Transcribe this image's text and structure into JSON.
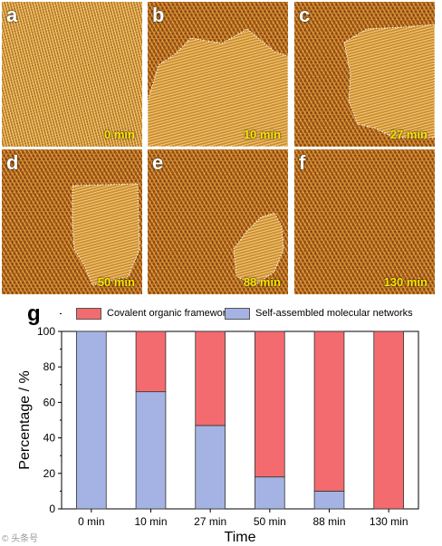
{
  "panels": [
    {
      "letter": "a",
      "time": "0 min"
    },
    {
      "letter": "b",
      "time": "10 min"
    },
    {
      "letter": "c",
      "time": "27 min"
    },
    {
      "letter": "d",
      "time": "50 min"
    },
    {
      "letter": "e",
      "time": "88 min"
    },
    {
      "letter": "f",
      "time": "130 min"
    }
  ],
  "chart_panel_letter": "g",
  "colors": {
    "cof": "#f36b6e",
    "smn": "#a4b3e3"
  },
  "chart_data": {
    "type": "bar",
    "stacked": true,
    "categories": [
      "0 min",
      "10 min",
      "27 min",
      "50 min",
      "88 min",
      "130 min"
    ],
    "series": [
      {
        "name": "Self-assembled molecular networks",
        "values": [
          100,
          66,
          47,
          18,
          10,
          0
        ]
      },
      {
        "name": "Covalent organic frameworks",
        "values": [
          0,
          34,
          53,
          82,
          90,
          100
        ]
      }
    ],
    "xlabel": "Time",
    "ylabel": "Percentage  /  %",
    "ylim": [
      0,
      100
    ],
    "yticks": [
      0,
      20,
      40,
      60,
      80,
      100
    ],
    "legend_position": "top"
  }
}
